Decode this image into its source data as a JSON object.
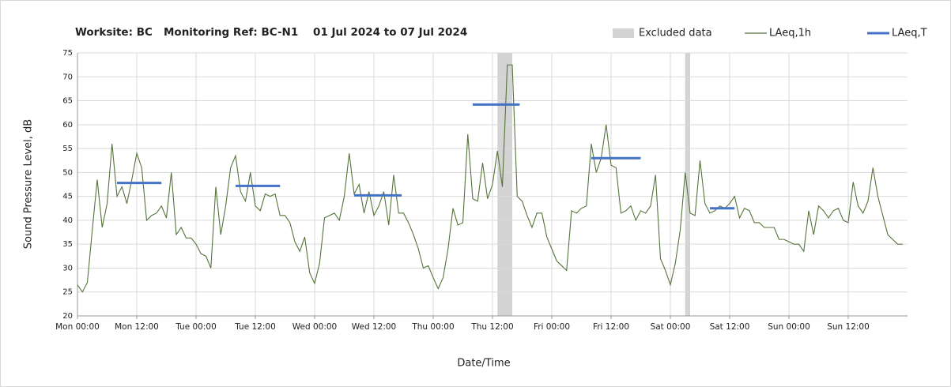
{
  "chart_data": {
    "type": "line",
    "title": "Worksite: BC   Monitoring Ref: BC-N1    01 Jul 2024 to 07 Jul 2024",
    "xlabel": "Date/Time",
    "ylabel": "Sound Pressure Level, dB",
    "xlim": [
      0,
      168
    ],
    "ylim": [
      20,
      75
    ],
    "xticks": [
      {
        "value": 0,
        "label": "Mon 00:00"
      },
      {
        "value": 12,
        "label": "Mon 12:00"
      },
      {
        "value": 24,
        "label": "Tue 00:00"
      },
      {
        "value": 36,
        "label": "Tue 12:00"
      },
      {
        "value": 48,
        "label": "Wed 00:00"
      },
      {
        "value": 60,
        "label": "Wed 12:00"
      },
      {
        "value": 72,
        "label": "Thu 00:00"
      },
      {
        "value": 84,
        "label": "Thu 12:00"
      },
      {
        "value": 96,
        "label": "Fri 00:00"
      },
      {
        "value": 108,
        "label": "Fri 12:00"
      },
      {
        "value": 120,
        "label": "Sat 00:00"
      },
      {
        "value": 132,
        "label": "Sat 12:00"
      },
      {
        "value": 144,
        "label": "Sun 00:00"
      },
      {
        "value": 156,
        "label": "Sun 12:00"
      }
    ],
    "yticks": [
      20,
      25,
      30,
      35,
      40,
      45,
      50,
      55,
      60,
      65,
      70,
      75
    ],
    "grid": true,
    "legend": "top-right",
    "excluded": {
      "name": "Excluded data",
      "color": "#d3d3d3",
      "ranges": [
        [
          85,
          88
        ],
        [
          123,
          124
        ]
      ]
    },
    "series": [
      {
        "name": "LAeq,1h",
        "color": "#55733a",
        "x": [
          0,
          1,
          2,
          3,
          4,
          5,
          6,
          7,
          8,
          9,
          10,
          11,
          12,
          13,
          14,
          15,
          16,
          17,
          18,
          19,
          20,
          21,
          22,
          23,
          24,
          25,
          26,
          27,
          28,
          29,
          30,
          31,
          32,
          33,
          34,
          35,
          36,
          37,
          38,
          39,
          40,
          41,
          42,
          43,
          44,
          45,
          46,
          47,
          48,
          49,
          50,
          51,
          52,
          53,
          54,
          55,
          56,
          57,
          58,
          59,
          60,
          61,
          62,
          63,
          64,
          65,
          66,
          67,
          68,
          69,
          70,
          71,
          72,
          73,
          74,
          75,
          76,
          77,
          78,
          79,
          80,
          81,
          82,
          83,
          84,
          85,
          86,
          87,
          88,
          89,
          90,
          91,
          92,
          93,
          94,
          95,
          96,
          97,
          98,
          99,
          100,
          101,
          102,
          103,
          104,
          105,
          106,
          107,
          108,
          109,
          110,
          111,
          112,
          113,
          114,
          115,
          116,
          117,
          118,
          119,
          120,
          121,
          122,
          123,
          124,
          125,
          126,
          127,
          128,
          129,
          130,
          131,
          132,
          133,
          134,
          135,
          136,
          137,
          138,
          139,
          140,
          141,
          142,
          143,
          144,
          145,
          146,
          147,
          148,
          149,
          150,
          151,
          152,
          153,
          154,
          155,
          156,
          157,
          158,
          159,
          160,
          161,
          162,
          163,
          164,
          165,
          166,
          167
        ],
        "values": [
          26.5,
          25,
          27,
          38,
          48.5,
          38.5,
          43.5,
          56,
          45,
          47,
          43.5,
          48.5,
          54,
          51,
          40,
          41,
          41.5,
          43,
          40.5,
          50,
          37,
          38.5,
          36.3,
          36.3,
          35,
          33,
          32.5,
          30,
          47,
          37,
          43,
          51,
          53.5,
          46,
          44,
          50,
          43,
          42,
          45.5,
          45,
          45.5,
          41,
          41,
          39.5,
          35.5,
          33.5,
          36.5,
          29,
          26.8,
          31,
          40.5,
          41,
          41.5,
          40,
          45,
          54,
          45.5,
          47.5,
          41.5,
          46,
          41,
          43,
          46,
          39,
          49.5,
          41.5,
          41.5,
          39.5,
          37,
          34,
          30,
          30.5,
          28,
          25.7,
          28,
          34,
          42.5,
          39,
          39.5,
          58,
          44.5,
          44,
          52,
          44.5,
          47.5,
          54.5,
          47,
          72.5,
          72.5,
          45,
          44,
          41,
          38.5,
          41.5,
          41.5,
          36.5,
          34,
          31.5,
          30.5,
          29.5,
          42,
          41.5,
          42.5,
          43,
          56,
          50,
          53,
          60,
          51.5,
          51,
          41.5,
          42,
          43,
          40,
          42,
          41.5,
          43,
          49.5,
          32,
          29.5,
          26.5,
          31,
          38,
          50,
          41.5,
          41,
          52.5,
          43.5,
          41.5,
          42,
          43,
          42.5,
          43.5,
          45,
          40.5,
          42.5,
          42,
          39.5,
          39.5,
          38.5,
          38.5,
          38.5,
          36,
          36,
          35.5,
          35,
          35,
          33.5,
          42,
          37,
          43,
          42,
          40.5,
          42,
          42.5,
          40,
          39.5,
          48,
          43,
          41.5,
          44,
          51,
          45,
          41,
          37,
          36,
          35,
          35
        ]
      }
    ],
    "periods": {
      "name": "LAeq,T",
      "color": "#4472c4",
      "segments": [
        {
          "start": 8,
          "end": 17,
          "value": 47.8
        },
        {
          "start": 32,
          "end": 41,
          "value": 47.2
        },
        {
          "start": 56,
          "end": 65.6,
          "value": 45.2
        },
        {
          "start": 80,
          "end": 89.5,
          "value": 64.2
        },
        {
          "start": 104,
          "end": 114,
          "value": 53
        },
        {
          "start": 128,
          "end": 133,
          "value": 42.5
        }
      ]
    }
  }
}
